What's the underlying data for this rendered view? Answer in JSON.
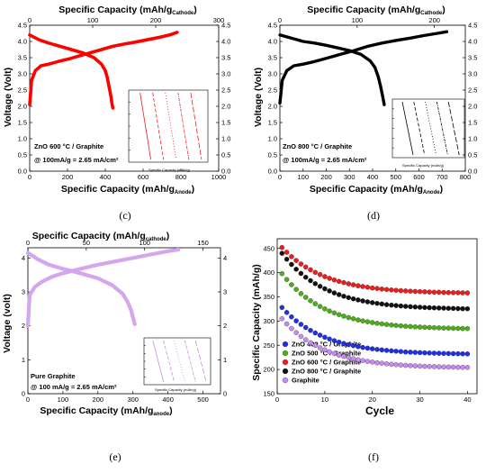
{
  "panels": {
    "c": {
      "label": "(c)",
      "x_label": "Specific Capacity (mAh/g",
      "x_label_sub": "Anode",
      "top_label": "Specific Capacity (mAh/g",
      "top_label_sub": "Cathode",
      "y_label": "Voltage (Volt)",
      "annotation1": "ZnO 600 °C / Graphite",
      "annotation2": "@ 100mA/g = 2.65 mA/cm²",
      "inset_title": "Specific Capacity (mAh/g)",
      "inset_ylabel": "Voltage (Volt)",
      "color": "#ff0000"
    },
    "d": {
      "label": "(d)",
      "x_label": "Specific Capacity (mAh/g",
      "x_label_sub": "Anode",
      "top_label": "Specific Capacity (mAh/g",
      "top_label_sub": "Cathode",
      "y_label": "Voltage (Volt)",
      "annotation1": "ZnO 800 °C / Graphite",
      "annotation2": "@ 100mA/g = 2.65 mA/cm²",
      "inset_title": "Specific Capacity (mAh/g)",
      "inset_ylabel": "Voltage (Volt)",
      "color": "#000000"
    },
    "e": {
      "label": "(e)",
      "x_label": "Specific Capacity (mAh/g",
      "x_label_sub": "anode",
      "top_label": "Specific Capacity (mAh/g",
      "top_label_sub": "cathode",
      "y_label": "Voltage (volt)",
      "annotation1": "Pure Graphite",
      "annotation2": "@ 100 mA/g = 2.65 mA/cm²",
      "inset_title": "Specific Capacity (mAh/g)",
      "inset_ylabel": "Voltage (volt)",
      "color": "#d4a6ee"
    },
    "f": {
      "label": "(f)",
      "x_label": "Cycle",
      "y_label": "Specific Capacity (mAh/g)"
    }
  },
  "chart_data": [
    {
      "id": "c",
      "type": "line",
      "xlabel": "Specific Capacity (mAh/gAnode)",
      "ylabel": "Voltage (Volt)",
      "xlim": [
        0,
        1000
      ],
      "x_ticks": [
        0,
        200,
        400,
        600,
        800,
        1000
      ],
      "top_xlim": [
        0,
        300
      ],
      "top_ticks": [
        0,
        100,
        200,
        300
      ],
      "ylim": [
        0,
        4.5
      ],
      "y_ticks": [
        0,
        0.5,
        1.0,
        1.5,
        2.0,
        2.5,
        3.0,
        3.5,
        4.0,
        4.5
      ],
      "series": [
        {
          "x": [
            0,
            10,
            30,
            60,
            100,
            150,
            200,
            260,
            320,
            380,
            440,
            500,
            560,
            620,
            680,
            740,
            780
          ],
          "y": [
            2.05,
            2.8,
            3.1,
            3.25,
            3.3,
            3.38,
            3.45,
            3.55,
            3.65,
            3.75,
            3.85,
            3.92,
            3.98,
            4.05,
            4.12,
            4.2,
            4.28
          ]
        },
        {
          "x": [
            0,
            50,
            100,
            160,
            220,
            280,
            340,
            380,
            400,
            410,
            420,
            430,
            435,
            440
          ],
          "y": [
            4.2,
            4.05,
            3.95,
            3.85,
            3.75,
            3.65,
            3.5,
            3.3,
            3.1,
            2.9,
            2.6,
            2.3,
            2.1,
            1.95
          ]
        }
      ]
    },
    {
      "id": "d",
      "type": "line",
      "xlabel": "Specific Capacity (mAh/gAnode)",
      "ylabel": "Voltage (Volt)",
      "xlim": [
        0,
        800
      ],
      "x_ticks": [
        0,
        100,
        200,
        300,
        400,
        500,
        600,
        700,
        800
      ],
      "top_xlim": [
        0,
        240
      ],
      "top_ticks": [
        0,
        100,
        200
      ],
      "ylim": [
        0,
        4.5
      ],
      "y_ticks": [
        0,
        0.5,
        1.0,
        1.5,
        2.0,
        2.5,
        3.0,
        3.5,
        4.0,
        4.5
      ],
      "series": [
        {
          "x": [
            0,
            10,
            30,
            60,
            100,
            150,
            200,
            260,
            320,
            380,
            440,
            500,
            560,
            620,
            680,
            720
          ],
          "y": [
            2.1,
            2.8,
            3.1,
            3.25,
            3.3,
            3.38,
            3.48,
            3.6,
            3.72,
            3.85,
            3.95,
            4.03,
            4.1,
            4.18,
            4.25,
            4.3
          ]
        },
        {
          "x": [
            0,
            50,
            100,
            150,
            200,
            250,
            300,
            350,
            390,
            410,
            425,
            435,
            445,
            450
          ],
          "y": [
            4.2,
            4.1,
            4.0,
            3.95,
            3.88,
            3.8,
            3.72,
            3.6,
            3.4,
            3.2,
            2.9,
            2.6,
            2.25,
            2.05
          ]
        }
      ]
    },
    {
      "id": "e",
      "type": "line",
      "xlabel": "Specific Capacity (mAh/ganode)",
      "ylabel": "Voltage (volt)",
      "xlim": [
        0,
        550
      ],
      "x_ticks": [
        0,
        100,
        200,
        300,
        400,
        500
      ],
      "top_xlim": [
        0,
        165
      ],
      "top_ticks": [
        0,
        50,
        100,
        150
      ],
      "ylim": [
        0,
        4.3
      ],
      "y_ticks": [
        0,
        1,
        2,
        3,
        4
      ],
      "series": [
        {
          "x": [
            0,
            5,
            20,
            40,
            70,
            100,
            150,
            200,
            250,
            300,
            350,
            400,
            430
          ],
          "y": [
            2.0,
            2.9,
            3.15,
            3.3,
            3.45,
            3.55,
            3.68,
            3.8,
            3.9,
            4.0,
            4.1,
            4.2,
            4.25
          ]
        },
        {
          "x": [
            0,
            30,
            60,
            100,
            150,
            200,
            240,
            270,
            285,
            295,
            300,
            305
          ],
          "y": [
            4.15,
            3.95,
            3.8,
            3.68,
            3.55,
            3.4,
            3.2,
            2.95,
            2.7,
            2.45,
            2.25,
            2.05
          ]
        }
      ]
    },
    {
      "id": "f",
      "type": "scatter",
      "xlabel": "Cycle",
      "ylabel": "Specific Capacity (mAh/g)",
      "xlim": [
        0,
        42
      ],
      "x_ticks": [
        0,
        10,
        20,
        30,
        40
      ],
      "ylim": [
        150,
        470
      ],
      "y_ticks": [
        150,
        200,
        250,
        300,
        350,
        400,
        450
      ],
      "legend": "lower-left",
      "series": [
        {
          "name": "ZnO 400 °C / Graphite",
          "color": "#1f2fe6",
          "start": 328,
          "end": 231
        },
        {
          "name": "ZnO 500 °C / Graphite",
          "color": "#4caf1a",
          "start": 398,
          "end": 283
        },
        {
          "name": "ZnO 600 °C / Graphite",
          "color": "#ee1c1c",
          "start": 452,
          "end": 357
        },
        {
          "name": "ZnO 800 °C / Graphite",
          "color": "#111111",
          "start": 440,
          "end": 324
        },
        {
          "name": "Graphite",
          "color": "#c78bf2",
          "start": 305,
          "end": 203
        }
      ]
    }
  ]
}
